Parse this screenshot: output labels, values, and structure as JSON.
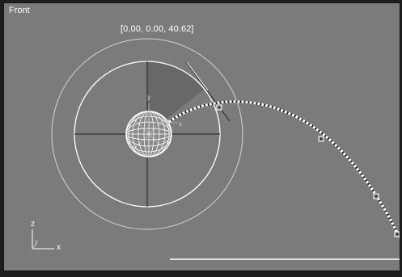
{
  "viewport": {
    "label": "Front",
    "coordinates": "[0.00, 0.00, 40.62]"
  },
  "axis_tripod": {
    "vertical_axis": "z",
    "horizontal_axis": "x",
    "depth_axis": "y"
  },
  "rotate_gizmo": {
    "local_y_label": "y",
    "local_x_label": "x"
  },
  "colors": {
    "viewport_background": "#7b7b7b",
    "gizmo_ring": "#ffffff",
    "sweep_fill": "#686868",
    "object_wireframe": "#ffffff",
    "trajectory": "#ffffff"
  }
}
